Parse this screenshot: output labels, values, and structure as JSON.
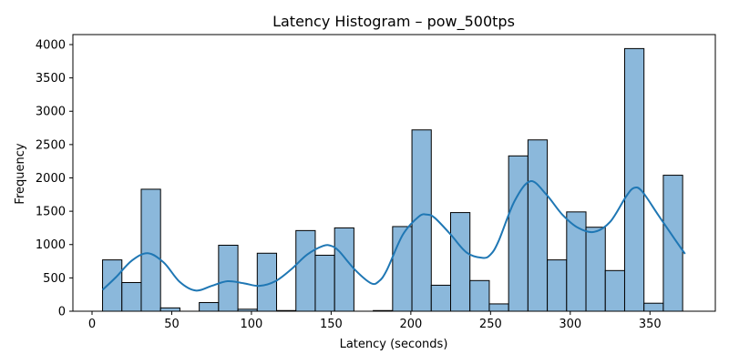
{
  "chart_data": {
    "type": "bar",
    "title": "Latency Histogram – pow_500tps",
    "xlabel": "Latency (seconds)",
    "ylabel": "Frequency",
    "xlim": [
      -12,
      391
    ],
    "ylim": [
      0,
      4150
    ],
    "xticks": [
      0,
      50,
      100,
      150,
      200,
      250,
      300,
      350
    ],
    "yticks": [
      0,
      500,
      1000,
      1500,
      2000,
      2500,
      3000,
      3500,
      4000
    ],
    "bin_width": 12.13,
    "bins": [
      {
        "x0": 6.6,
        "value": 770
      },
      {
        "x0": 18.73,
        "value": 430
      },
      {
        "x0": 30.86,
        "value": 1830
      },
      {
        "x0": 42.99,
        "value": 50
      },
      {
        "x0": 55.12,
        "value": 0
      },
      {
        "x0": 67.25,
        "value": 130
      },
      {
        "x0": 79.38,
        "value": 990
      },
      {
        "x0": 91.51,
        "value": 30
      },
      {
        "x0": 103.64,
        "value": 870
      },
      {
        "x0": 115.77,
        "value": 10
      },
      {
        "x0": 127.9,
        "value": 1210
      },
      {
        "x0": 140.03,
        "value": 840
      },
      {
        "x0": 152.16,
        "value": 1250
      },
      {
        "x0": 164.29,
        "value": 0
      },
      {
        "x0": 176.42,
        "value": 10
      },
      {
        "x0": 188.55,
        "value": 1270
      },
      {
        "x0": 200.68,
        "value": 2720
      },
      {
        "x0": 212.81,
        "value": 390
      },
      {
        "x0": 224.94,
        "value": 1480
      },
      {
        "x0": 237.07,
        "value": 460
      },
      {
        "x0": 249.2,
        "value": 110
      },
      {
        "x0": 261.33,
        "value": 2330
      },
      {
        "x0": 273.46,
        "value": 2570
      },
      {
        "x0": 285.59,
        "value": 770
      },
      {
        "x0": 297.72,
        "value": 1490
      },
      {
        "x0": 309.85,
        "value": 1260
      },
      {
        "x0": 321.98,
        "value": 610
      },
      {
        "x0": 334.11,
        "value": 3940
      },
      {
        "x0": 346.24,
        "value": 120
      },
      {
        "x0": 358.37,
        "value": 2040
      }
    ],
    "kde": {
      "x": [
        6.6,
        15,
        25,
        35,
        45,
        55,
        65,
        75,
        85,
        95,
        105,
        115,
        125,
        135,
        145,
        150,
        155,
        165,
        175,
        180,
        185,
        195,
        205,
        210,
        215,
        225,
        235,
        245,
        250,
        255,
        265,
        275,
        285,
        295,
        305,
        315,
        325,
        335,
        340,
        345,
        355,
        365,
        372
      ],
      "y": [
        320,
        510,
        760,
        870,
        730,
        440,
        310,
        380,
        450,
        420,
        380,
        450,
        630,
        850,
        980,
        980,
        900,
        620,
        420,
        450,
        620,
        1150,
        1420,
        1450,
        1400,
        1150,
        880,
        800,
        850,
        1050,
        1650,
        1950,
        1750,
        1450,
        1250,
        1190,
        1340,
        1720,
        1850,
        1800,
        1450,
        1100,
        860
      ]
    },
    "colors": {
      "bar_fill": "#8bb8db",
      "bar_edge": "#000000",
      "kde_line": "#1f77b4",
      "background": "#ffffff"
    }
  }
}
